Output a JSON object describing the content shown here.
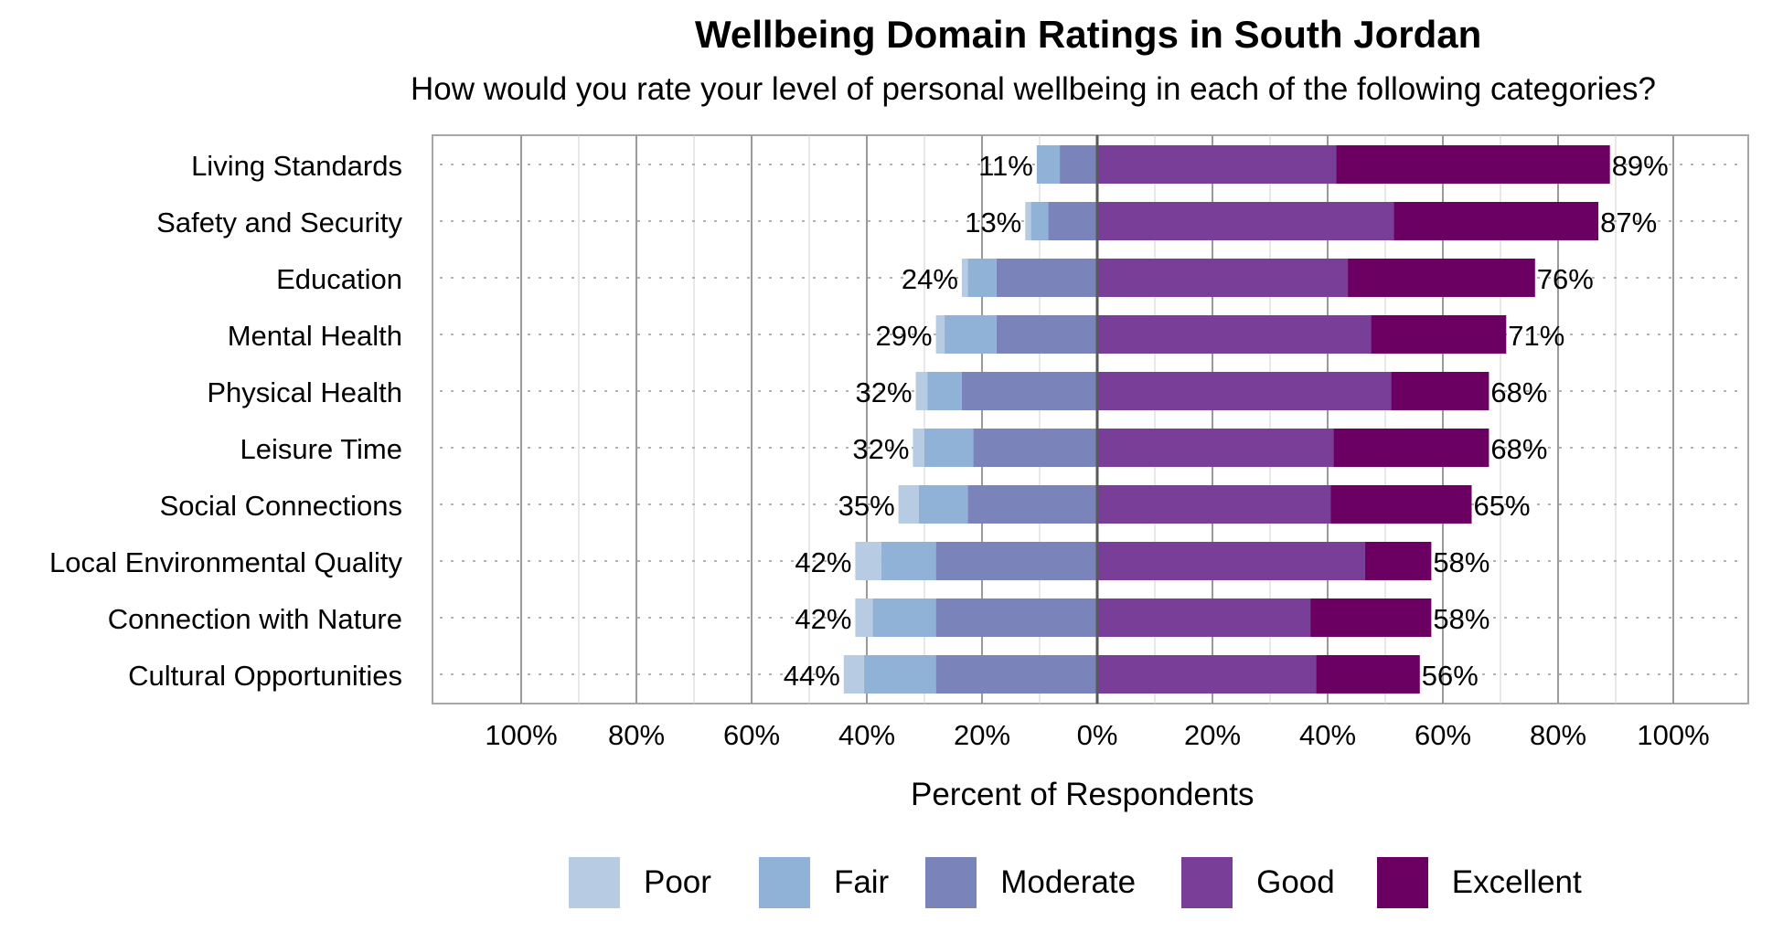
{
  "title": "Wellbeing Domain Ratings in South Jordan",
  "subtitle": "How would you rate your level of personal wellbeing in each of the following categories?",
  "chart_data": {
    "type": "bar",
    "orientation": "horizontal-diverging-stacked",
    "xlabel": "Percent of Respondents",
    "xlim": [
      -100,
      100
    ],
    "x_ticks": [
      "100%",
      "80%",
      "60%",
      "40%",
      "20%",
      "0%",
      "20%",
      "40%",
      "60%",
      "80%",
      "100%"
    ],
    "grid": true,
    "legend_position": "bottom",
    "categories": [
      "Living Standards",
      "Safety and Security",
      "Education",
      "Mental Health",
      "Physical Health",
      "Leisure Time",
      "Social Connections",
      "Local Environmental Quality",
      "Connection with Nature",
      "Cultural Opportunities"
    ],
    "negative_labels": [
      "11%",
      "13%",
      "24%",
      "29%",
      "32%",
      "32%",
      "35%",
      "42%",
      "42%",
      "44%"
    ],
    "positive_labels": [
      "89%",
      "87%",
      "76%",
      "71%",
      "68%",
      "68%",
      "65%",
      "58%",
      "58%",
      "56%"
    ],
    "series": [
      {
        "name": "Poor",
        "side": "negative",
        "color": "#b7cbe3",
        "values": [
          0,
          1,
          1,
          1.5,
          2,
          2,
          3.5,
          4.5,
          3,
          3.5
        ]
      },
      {
        "name": "Fair",
        "side": "negative",
        "color": "#8fb2d6",
        "values": [
          4,
          3,
          5,
          9,
          6,
          8.5,
          8.5,
          9.5,
          11,
          12.5
        ]
      },
      {
        "name": "Moderate",
        "side": "negative",
        "color": "#7b83bb",
        "values": [
          6.5,
          8.5,
          17.5,
          17.5,
          23.5,
          21.5,
          22.5,
          28,
          28,
          28
        ]
      },
      {
        "name": "Good",
        "side": "positive",
        "color": "#783e98",
        "values": [
          41.5,
          51.5,
          43.5,
          47.5,
          51,
          41,
          40.5,
          46.5,
          37,
          38
        ]
      },
      {
        "name": "Excellent",
        "side": "positive",
        "color": "#6b0062",
        "values": [
          47.5,
          35.5,
          32.5,
          23.5,
          17,
          27,
          24.5,
          11.5,
          21,
          18
        ]
      }
    ]
  }
}
